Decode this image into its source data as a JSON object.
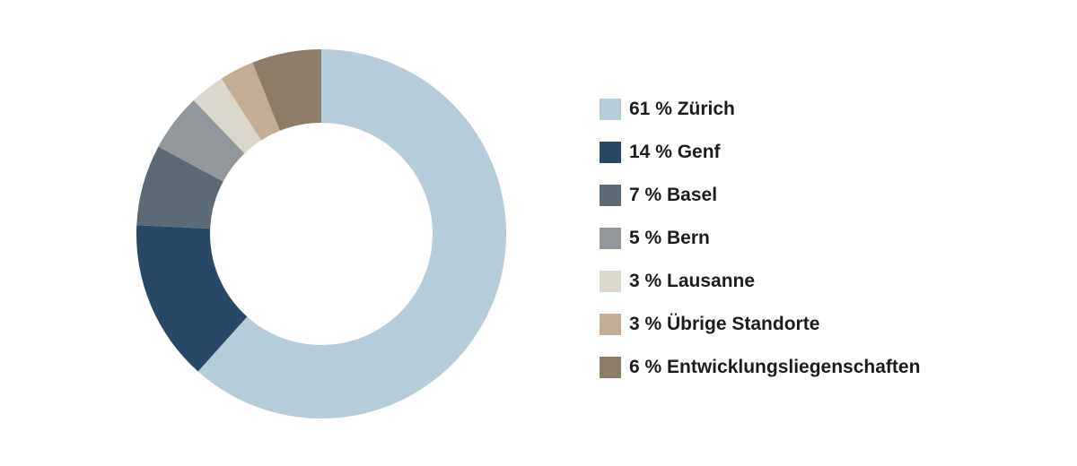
{
  "chart_data": {
    "type": "pie",
    "subtype": "donut",
    "title": "",
    "legend_position": "right",
    "direction": "clockwise",
    "start_angle_deg": 0,
    "hole_ratio": 0.6,
    "text_color": "#1a1d20",
    "hole_color": "#ffffff",
    "slices": [
      {
        "label": "Zürich",
        "value": 61,
        "display": "61 % Zürich",
        "color": "#b6ccd8"
      },
      {
        "label": "Genf",
        "value": 14,
        "display": "14 % Genf",
        "color": "#294866"
      },
      {
        "label": "Basel",
        "value": 7,
        "display": "7 % Basel",
        "color": "#5c6a76"
      },
      {
        "label": "Bern",
        "value": 5,
        "display": "5 % Bern",
        "color": "#92979c"
      },
      {
        "label": "Lausanne",
        "value": 3,
        "display": "3 % Lausanne",
        "color": "#dbd7cc"
      },
      {
        "label": "Übrige Standorte",
        "value": 3,
        "display": "3 % Übrige Standorte",
        "color": "#c2ae96"
      },
      {
        "label": "Entwicklungsliegenschaften",
        "value": 6,
        "display": "6 % Entwicklungsliegenschaften",
        "color": "#8c7c68"
      }
    ]
  }
}
